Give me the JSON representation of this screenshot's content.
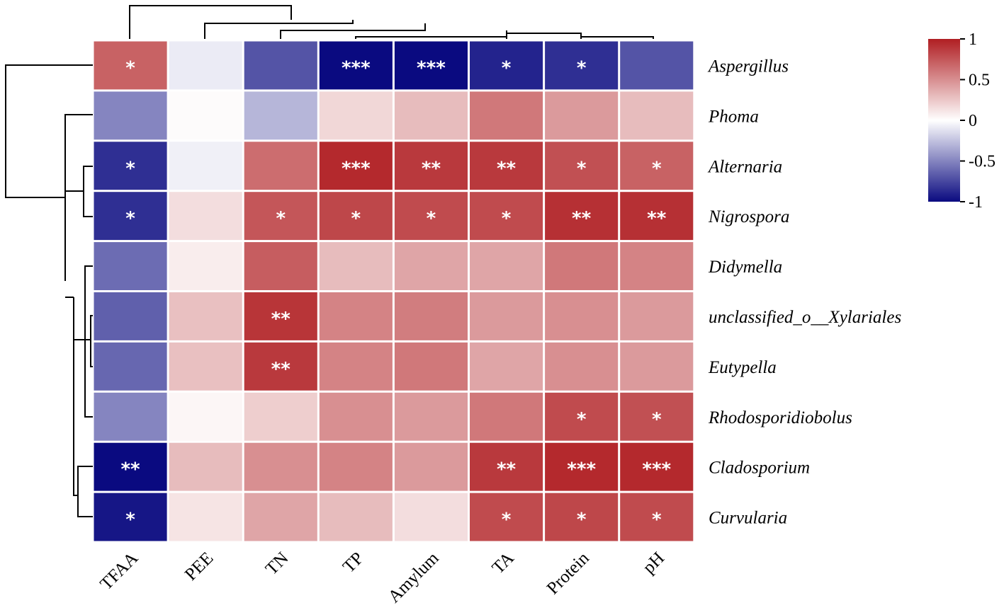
{
  "chart_data": {
    "type": "heatmap",
    "title": "",
    "rows": [
      "Aspergillus",
      "Phoma",
      "Alternaria",
      "Nigrospora",
      "Didymella",
      "unclassified_o__Xylariales",
      "Eutypella",
      "Rhodosporidiobolus",
      "Cladosporium",
      "Curvularia"
    ],
    "columns": [
      "TFAA",
      "PEE",
      "TN",
      "TP",
      "Amylum",
      "TA",
      "Protein",
      "pH"
    ],
    "values": [
      [
        0.7,
        -0.08,
        -0.7,
        -1.0,
        -1.0,
        -0.9,
        -0.85,
        -0.7
      ],
      [
        -0.5,
        0.02,
        -0.3,
        0.18,
        0.3,
        0.6,
        0.45,
        0.3
      ],
      [
        -0.85,
        -0.06,
        0.65,
        0.95,
        0.88,
        0.88,
        0.78,
        0.7
      ],
      [
        -0.85,
        0.15,
        0.75,
        0.82,
        0.8,
        0.8,
        0.92,
        0.92
      ],
      [
        -0.6,
        0.08,
        0.72,
        0.3,
        0.4,
        0.4,
        0.6,
        0.55
      ],
      [
        -0.65,
        0.28,
        0.9,
        0.55,
        0.58,
        0.45,
        0.5,
        0.45
      ],
      [
        -0.62,
        0.28,
        0.88,
        0.55,
        0.6,
        0.4,
        0.5,
        0.45
      ],
      [
        -0.5,
        0.04,
        0.22,
        0.5,
        0.45,
        0.6,
        0.8,
        0.78
      ],
      [
        -1.0,
        0.3,
        0.5,
        0.55,
        0.45,
        0.88,
        0.95,
        0.95
      ],
      [
        -0.95,
        0.12,
        0.4,
        0.3,
        0.15,
        0.8,
        0.82,
        0.8
      ]
    ],
    "significance": [
      [
        "*",
        "",
        "",
        "***",
        "***",
        "*",
        "*",
        ""
      ],
      [
        "",
        "",
        "",
        "",
        "",
        "",
        "",
        ""
      ],
      [
        "*",
        "",
        "",
        "***",
        "**",
        "**",
        "*",
        "*"
      ],
      [
        "*",
        "",
        "*",
        "*",
        "*",
        "*",
        "**",
        "**"
      ],
      [
        "",
        "",
        "",
        "",
        "",
        "",
        "",
        ""
      ],
      [
        "",
        "",
        "**",
        "",
        "",
        "",
        "",
        ""
      ],
      [
        "",
        "",
        "**",
        "",
        "",
        "",
        "",
        ""
      ],
      [
        "",
        "",
        "",
        "",
        "",
        "",
        "*",
        "*"
      ],
      [
        "**",
        "",
        "",
        "",
        "",
        "**",
        "***",
        "***"
      ],
      [
        "*",
        "",
        "",
        "",
        "",
        "*",
        "*",
        "*"
      ]
    ],
    "colorbar": {
      "ticks": [
        1,
        0.5,
        0,
        -0.5,
        -1
      ],
      "tick_labels": [
        "1",
        "0.5",
        "0",
        "-0.5",
        "-1"
      ],
      "range": [
        -1,
        1
      ],
      "colors": {
        "low": "#0a0a80",
        "mid": "#ffffff",
        "high": "#b01e22"
      }
    },
    "row_dendrogram": true,
    "column_dendrogram": true
  }
}
